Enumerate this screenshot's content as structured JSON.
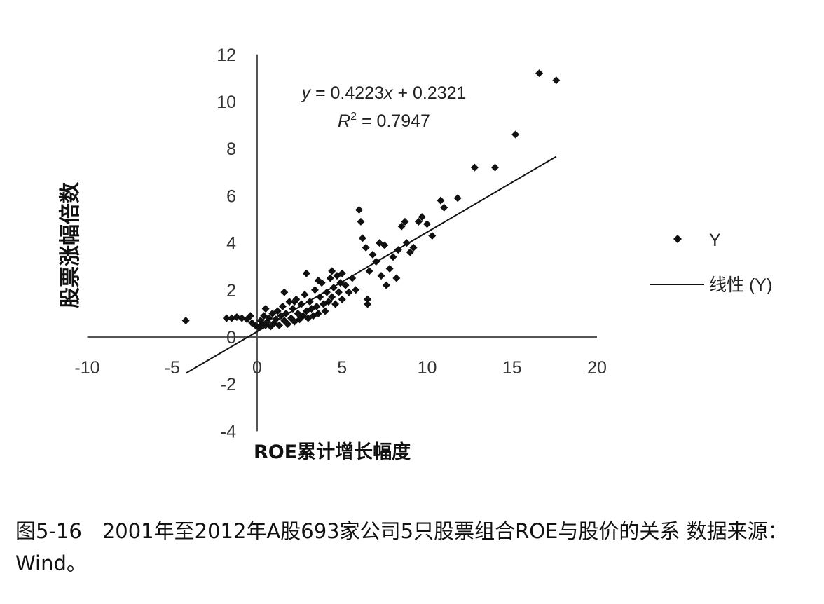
{
  "chart_data": {
    "type": "scatter",
    "title": "",
    "xlabel": "ROE累计增长幅度",
    "ylabel": "股票涨幅倍数",
    "xlim": [
      -10,
      20
    ],
    "ylim": [
      -4,
      12
    ],
    "x_ticks": [
      "-10",
      "-5",
      "0",
      "5",
      "10",
      "15",
      "20"
    ],
    "y_ticks": [
      "-4",
      "-2",
      "0",
      "2",
      "4",
      "6",
      "8",
      "10",
      "12"
    ],
    "grid": false,
    "legend_position": "right",
    "series": [
      {
        "name": "Y",
        "kind": "scatter",
        "marker": "diamond",
        "color": "#111111",
        "points": [
          [
            -4.2,
            0.7
          ],
          [
            -1.8,
            0.8
          ],
          [
            -1.5,
            0.8
          ],
          [
            -1.2,
            0.85
          ],
          [
            -0.9,
            0.8
          ],
          [
            -0.6,
            0.75
          ],
          [
            -0.4,
            0.9
          ],
          [
            -0.3,
            0.6
          ],
          [
            -0.1,
            0.5
          ],
          [
            0.1,
            0.4
          ],
          [
            0.2,
            0.7
          ],
          [
            0.3,
            0.55
          ],
          [
            0.4,
            0.9
          ],
          [
            0.5,
            0.5
          ],
          [
            0.5,
            1.2
          ],
          [
            0.6,
            0.65
          ],
          [
            0.7,
            0.8
          ],
          [
            0.8,
            0.45
          ],
          [
            0.9,
            1.0
          ],
          [
            1.0,
            0.6
          ],
          [
            1.1,
            0.75
          ],
          [
            1.2,
            1.1
          ],
          [
            1.3,
            0.5
          ],
          [
            1.4,
            0.9
          ],
          [
            1.5,
            1.3
          ],
          [
            1.6,
            0.7
          ],
          [
            1.7,
            1.0
          ],
          [
            1.8,
            0.55
          ],
          [
            1.9,
            1.5
          ],
          [
            2.0,
            0.8
          ],
          [
            2.1,
            1.2
          ],
          [
            2.2,
            0.65
          ],
          [
            2.3,
            1.6
          ],
          [
            2.4,
            1.0
          ],
          [
            2.5,
            0.75
          ],
          [
            2.6,
            1.4
          ],
          [
            2.7,
            0.9
          ],
          [
            2.8,
            1.8
          ],
          [
            2.9,
            1.1
          ],
          [
            3.0,
            0.8
          ],
          [
            3.1,
            1.5
          ],
          [
            3.2,
            1.2
          ],
          [
            3.3,
            0.9
          ],
          [
            3.4,
            2.0
          ],
          [
            3.5,
            1.3
          ],
          [
            3.6,
            1.0
          ],
          [
            3.7,
            1.7
          ],
          [
            3.8,
            2.3
          ],
          [
            3.9,
            1.4
          ],
          [
            4.0,
            1.1
          ],
          [
            4.1,
            1.9
          ],
          [
            4.2,
            1.5
          ],
          [
            4.3,
            2.5
          ],
          [
            4.4,
            1.7
          ],
          [
            4.5,
            2.1
          ],
          [
            4.6,
            1.4
          ],
          [
            4.7,
            2.6
          ],
          [
            4.8,
            1.9
          ],
          [
            4.9,
            2.3
          ],
          [
            5.0,
            1.6
          ],
          [
            1.6,
            1.9
          ],
          [
            2.2,
            1.5
          ],
          [
            2.9,
            2.7
          ],
          [
            3.6,
            2.4
          ],
          [
            4.4,
            2.8
          ],
          [
            5.0,
            2.7
          ],
          [
            5.2,
            2.2
          ],
          [
            5.4,
            1.9
          ],
          [
            5.6,
            2.5
          ],
          [
            5.8,
            2.0
          ],
          [
            6.0,
            5.4
          ],
          [
            6.1,
            4.9
          ],
          [
            6.2,
            4.2
          ],
          [
            6.4,
            3.8
          ],
          [
            6.5,
            1.6
          ],
          [
            6.5,
            1.4
          ],
          [
            6.6,
            2.8
          ],
          [
            6.8,
            3.5
          ],
          [
            7.0,
            3.2
          ],
          [
            7.2,
            4.0
          ],
          [
            7.3,
            2.6
          ],
          [
            7.5,
            3.9
          ],
          [
            7.6,
            2.2
          ],
          [
            7.8,
            2.9
          ],
          [
            8.0,
            3.4
          ],
          [
            8.2,
            2.5
          ],
          [
            8.3,
            3.7
          ],
          [
            8.5,
            4.7
          ],
          [
            8.7,
            4.9
          ],
          [
            8.8,
            4.0
          ],
          [
            9.0,
            3.6
          ],
          [
            9.2,
            3.8
          ],
          [
            9.5,
            4.9
          ],
          [
            9.7,
            5.1
          ],
          [
            10.0,
            4.8
          ],
          [
            10.3,
            4.3
          ],
          [
            10.8,
            5.8
          ],
          [
            11.0,
            5.5
          ],
          [
            11.8,
            5.9
          ],
          [
            12.8,
            7.2
          ],
          [
            14.0,
            7.2
          ],
          [
            15.2,
            8.6
          ],
          [
            16.6,
            11.2
          ],
          [
            17.6,
            10.9
          ]
        ]
      },
      {
        "name": "线性 (Y)",
        "kind": "line",
        "color": "#111111",
        "slope": 0.4223,
        "intercept": 0.2321,
        "x_range": [
          -4.2,
          17.6
        ]
      }
    ],
    "annotations": {
      "equation_lhs": "y",
      "equation_eq": " = 0.4223",
      "equation_x": "x",
      "equation_rest": " + 0.2321",
      "r2_lhs": "R",
      "r2_sup": "2",
      "r2_rest": " = 0.7947"
    }
  },
  "legend": {
    "scatter_label": "Y",
    "line_label": "线性 (Y)"
  },
  "caption": "图5-16　2001年至2012年A股693家公司5只股票组合ROE与股价的关系 数据来源：Wind。"
}
